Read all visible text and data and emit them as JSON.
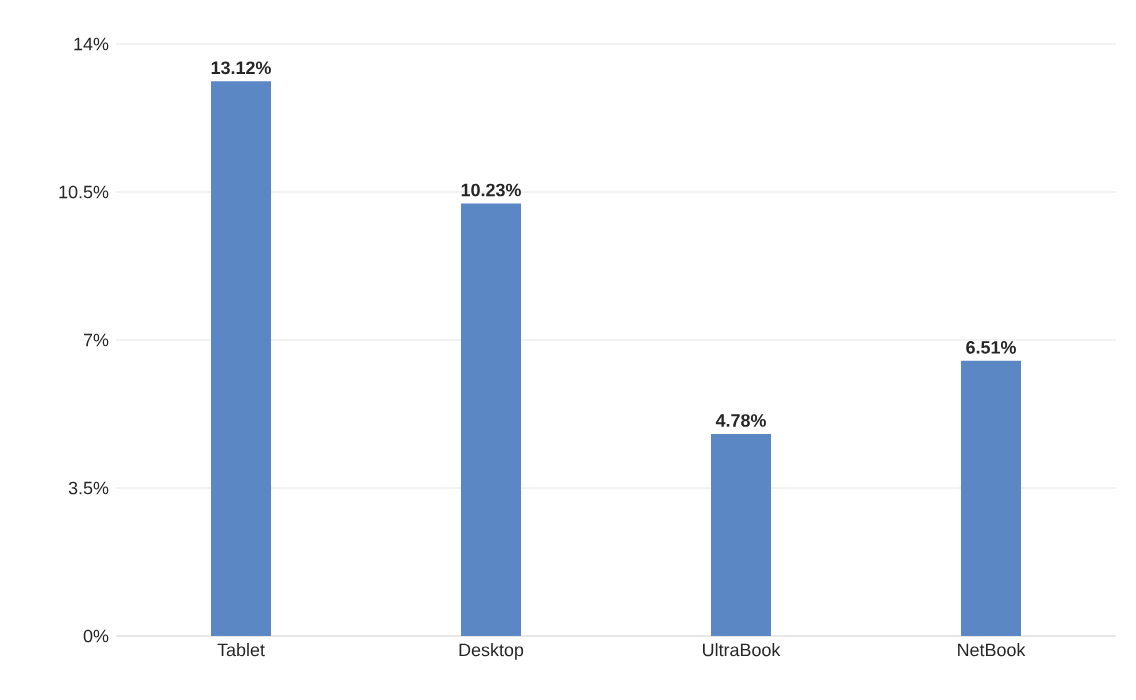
{
  "chart_data": {
    "type": "bar",
    "categories": [
      "Tablet",
      "Desktop",
      "UltraBook",
      "NetBook"
    ],
    "values": [
      13.12,
      10.23,
      4.78,
      6.51
    ],
    "value_labels": [
      "13.12%",
      "10.23%",
      "4.78%",
      "6.51%"
    ],
    "color": "#5b87c4",
    "ylim": [
      0,
      14
    ],
    "yticks": [
      {
        "value": 0,
        "label": "0%"
      },
      {
        "value": 3.5,
        "label": "3.5%"
      },
      {
        "value": 7,
        "label": "7%"
      },
      {
        "value": 10.5,
        "label": "10.5%"
      },
      {
        "value": 14,
        "label": "14%"
      }
    ],
    "grid": "y"
  }
}
